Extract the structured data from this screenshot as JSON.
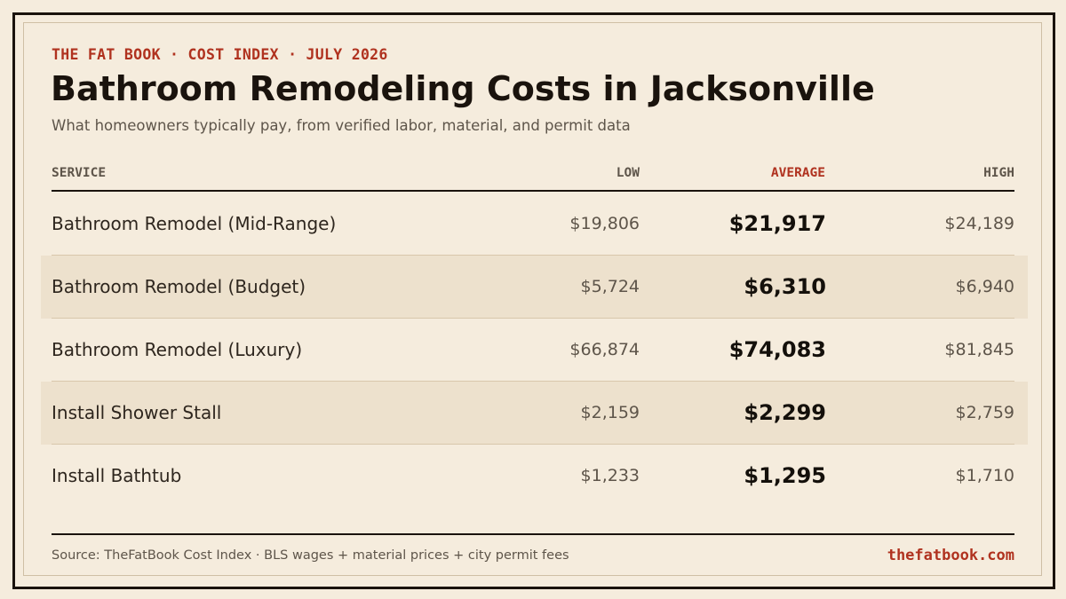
{
  "header": {
    "kicker": "THE FAT BOOK · COST INDEX · JULY 2026",
    "title": "Bathroom Remodeling Costs in Jacksonville",
    "subtitle": "What homeowners typically pay, from verified labor, material, and permit data"
  },
  "table": {
    "columns": {
      "service": "SERVICE",
      "low": "LOW",
      "average": "AVERAGE",
      "high": "HIGH"
    },
    "rows": [
      {
        "service": "Bathroom Remodel (Mid-Range)",
        "low": "$19,806",
        "average": "$21,917",
        "high": "$24,189"
      },
      {
        "service": "Bathroom Remodel (Budget)",
        "low": "$5,724",
        "average": "$6,310",
        "high": "$6,940"
      },
      {
        "service": "Bathroom Remodel (Luxury)",
        "low": "$66,874",
        "average": "$74,083",
        "high": "$81,845"
      },
      {
        "service": "Install Shower Stall",
        "low": "$2,159",
        "average": "$2,299",
        "high": "$2,759"
      },
      {
        "service": "Install Bathtub",
        "low": "$1,233",
        "average": "$1,295",
        "high": "$1,710"
      }
    ]
  },
  "footer": {
    "source": "Source: TheFatBook Cost Index · BLS wages + material prices + city permit fees",
    "site": "thefatbook.com"
  },
  "colors": {
    "background": "#f5ecdd",
    "accent": "#b0321f",
    "ink": "#1a130d",
    "row_shade": "#ede1cd"
  }
}
